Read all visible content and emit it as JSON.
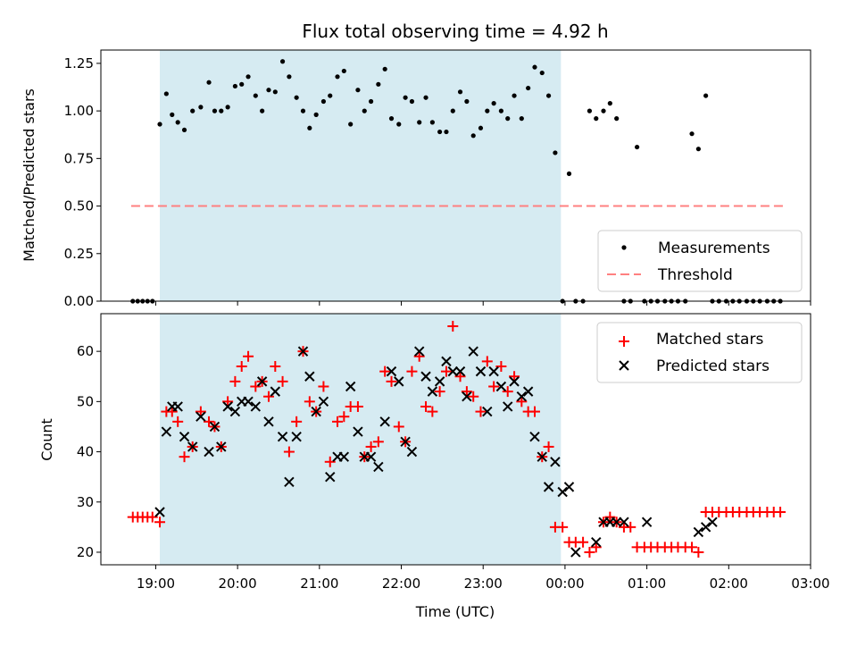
{
  "chart_data": [
    {
      "type": "scatter",
      "title": "Flux total observing time = 4.92 h",
      "ylabel": "Matched/Predicted stars",
      "xlabel": "",
      "ylim": [
        0,
        1.32
      ],
      "yticks": [
        "0.00",
        "0.25",
        "0.50",
        "0.75",
        "1.00",
        "1.25"
      ],
      "ytick_values": [
        0,
        0.25,
        0.5,
        0.75,
        1.0,
        1.25
      ],
      "xlim_hours": [
        18.33,
        27.0
      ],
      "shaded_region_hours": [
        19.05,
        23.95
      ],
      "legend": {
        "placement": "lower right",
        "entries": [
          "Measurements",
          "Threshold"
        ]
      },
      "threshold": {
        "name": "Threshold",
        "y": 0.5,
        "x_range_hours": [
          18.7,
          26.7
        ],
        "color": "#ff8080"
      },
      "series": [
        {
          "name": "Measurements",
          "marker": "dot",
          "color": "#000000",
          "x_hours": [
            18.72,
            18.78,
            18.84,
            18.9,
            18.96,
            19.05,
            19.13,
            19.2,
            19.27,
            19.35,
            19.45,
            19.55,
            19.65,
            19.72,
            19.8,
            19.88,
            19.97,
            20.05,
            20.13,
            20.22,
            20.3,
            20.38,
            20.46,
            20.55,
            20.63,
            20.72,
            20.8,
            20.88,
            20.96,
            21.05,
            21.13,
            21.22,
            21.3,
            21.38,
            21.47,
            21.55,
            21.63,
            21.72,
            21.8,
            21.88,
            21.97,
            22.05,
            22.13,
            22.22,
            22.3,
            22.38,
            22.47,
            22.55,
            22.63,
            22.72,
            22.8,
            22.88,
            22.97,
            23.05,
            23.13,
            23.22,
            23.3,
            23.38,
            23.47,
            23.55,
            23.63,
            23.72,
            23.8,
            23.88,
            23.97,
            24.05,
            24.13,
            24.22,
            24.3,
            24.38,
            24.47,
            24.55,
            24.63,
            24.72,
            24.8,
            24.88,
            24.97,
            25.05,
            25.13,
            25.22,
            25.3,
            25.38,
            25.47,
            25.55,
            25.63,
            25.72,
            25.8,
            25.88,
            25.97,
            26.05,
            26.13,
            26.22,
            26.3,
            26.38,
            26.47,
            26.55,
            26.63
          ],
          "y": [
            0,
            0,
            0,
            0,
            0,
            0.93,
            1.09,
            0.98,
            0.94,
            0.9,
            1.0,
            1.02,
            1.15,
            1.0,
            1.0,
            1.02,
            1.13,
            1.14,
            1.18,
            1.08,
            1.0,
            1.11,
            1.1,
            1.26,
            1.18,
            1.07,
            1.0,
            0.91,
            0.98,
            1.05,
            1.08,
            1.18,
            1.21,
            0.93,
            1.11,
            1.0,
            1.05,
            1.14,
            1.22,
            0.96,
            0.93,
            1.07,
            1.05,
            0.94,
            1.07,
            0.94,
            0.89,
            0.89,
            1.0,
            1.1,
            1.05,
            0.87,
            0.91,
            1.0,
            1.04,
            1.0,
            0.96,
            1.08,
            0.96,
            1.12,
            1.23,
            1.2,
            1.08,
            0.78,
            0,
            0.67,
            0,
            0,
            1.0,
            0.96,
            1.0,
            1.04,
            0.96,
            0,
            0,
            0.81,
            0,
            0,
            0,
            0,
            0,
            0,
            0,
            0.88,
            0.8,
            1.08,
            0,
            0,
            0,
            0,
            0,
            0,
            0,
            0,
            0,
            0,
            0
          ]
        }
      ]
    },
    {
      "type": "scatter",
      "title": "",
      "xlabel": "Time (UTC)",
      "ylabel": "Count",
      "ylim": [
        17.5,
        67.5
      ],
      "yticks": [
        "20",
        "30",
        "40",
        "50",
        "60"
      ],
      "ytick_values": [
        20,
        30,
        40,
        50,
        60
      ],
      "xlim_hours": [
        18.33,
        27.0
      ],
      "xticks": [
        "19:00",
        "20:00",
        "21:00",
        "22:00",
        "23:00",
        "00:00",
        "01:00",
        "02:00",
        "03:00"
      ],
      "xtick_hours": [
        19,
        20,
        21,
        22,
        23,
        24,
        25,
        26,
        27
      ],
      "shaded_region_hours": [
        19.05,
        23.95
      ],
      "legend": {
        "placement": "upper right",
        "entries": [
          "Matched stars",
          "Predicted stars"
        ]
      },
      "series": [
        {
          "name": "Matched stars",
          "marker": "plus",
          "color": "#ff0000",
          "x_hours": [
            18.72,
            18.78,
            18.84,
            18.9,
            18.96,
            19.05,
            19.13,
            19.2,
            19.27,
            19.35,
            19.45,
            19.55,
            19.65,
            19.72,
            19.8,
            19.88,
            19.97,
            20.05,
            20.13,
            20.22,
            20.3,
            20.38,
            20.46,
            20.55,
            20.63,
            20.72,
            20.8,
            20.88,
            20.96,
            21.05,
            21.13,
            21.22,
            21.3,
            21.38,
            21.47,
            21.55,
            21.63,
            21.72,
            21.8,
            21.88,
            21.97,
            22.05,
            22.13,
            22.22,
            22.3,
            22.38,
            22.47,
            22.55,
            22.63,
            22.72,
            22.8,
            22.88,
            22.97,
            23.05,
            23.13,
            23.22,
            23.3,
            23.38,
            23.47,
            23.55,
            23.63,
            23.72,
            23.8,
            23.88,
            23.97,
            24.05,
            24.13,
            24.22,
            24.3,
            24.38,
            24.47,
            24.55,
            24.63,
            24.72,
            24.8,
            24.88,
            24.97,
            25.05,
            25.13,
            25.22,
            25.3,
            25.38,
            25.47,
            25.55,
            25.63,
            25.72,
            25.8,
            25.88,
            25.97,
            26.05,
            26.13,
            26.22,
            26.3,
            26.38,
            26.47,
            26.55,
            26.63
          ],
          "y": [
            27,
            27,
            27,
            27,
            27,
            26,
            48,
            48,
            46,
            39,
            41,
            48,
            46,
            45,
            41,
            50,
            54,
            57,
            59,
            53,
            54,
            51,
            57,
            54,
            40,
            46,
            60,
            50,
            48,
            53,
            38,
            46,
            47,
            49,
            49,
            39,
            41,
            42,
            56,
            54,
            45,
            42,
            56,
            59,
            49,
            48,
            52,
            56,
            65,
            55,
            52,
            51,
            48,
            58,
            53,
            57,
            52,
            55,
            50,
            48,
            48,
            39,
            41,
            25,
            25,
            22,
            22,
            22,
            20,
            21,
            26,
            27,
            26,
            25,
            25,
            21,
            21,
            21,
            21,
            21,
            21,
            21,
            21,
            21,
            20,
            28,
            28,
            28,
            28,
            28,
            28,
            28,
            28,
            28,
            28,
            28,
            28
          ],
          "point_count_note": ""
        },
        {
          "name": "Predicted stars",
          "marker": "x",
          "color": "#000000",
          "x_hours": [
            19.05,
            19.13,
            19.2,
            19.27,
            19.35,
            19.45,
            19.55,
            19.65,
            19.72,
            19.8,
            19.88,
            19.97,
            20.05,
            20.13,
            20.22,
            20.3,
            20.38,
            20.46,
            20.55,
            20.63,
            20.72,
            20.8,
            20.88,
            20.96,
            21.05,
            21.13,
            21.22,
            21.3,
            21.38,
            21.47,
            21.55,
            21.63,
            21.72,
            21.8,
            21.88,
            21.97,
            22.05,
            22.13,
            22.22,
            22.3,
            22.38,
            22.47,
            22.55,
            22.63,
            22.72,
            22.8,
            22.88,
            22.97,
            23.05,
            23.13,
            23.22,
            23.3,
            23.38,
            23.47,
            23.55,
            23.63,
            23.72,
            23.8,
            23.88,
            23.97,
            24.05,
            24.13,
            24.38,
            24.47,
            24.55,
            24.63,
            24.72,
            25.0,
            25.63,
            25.72,
            25.8
          ],
          "y": [
            28,
            44,
            49,
            49,
            43,
            41,
            47,
            40,
            45,
            41,
            49,
            48,
            50,
            50,
            49,
            54,
            46,
            52,
            43,
            34,
            43,
            60,
            55,
            48,
            50,
            35,
            39,
            39,
            53,
            44,
            39,
            39,
            37,
            46,
            56,
            54,
            42,
            40,
            60,
            55,
            52,
            54,
            58,
            56,
            56,
            51,
            60,
            56,
            48,
            56,
            53,
            49,
            54,
            51,
            52,
            43,
            39,
            33,
            38,
            32,
            33,
            20,
            22,
            26,
            26,
            26,
            26,
            26,
            24,
            25,
            26
          ]
        }
      ]
    }
  ]
}
